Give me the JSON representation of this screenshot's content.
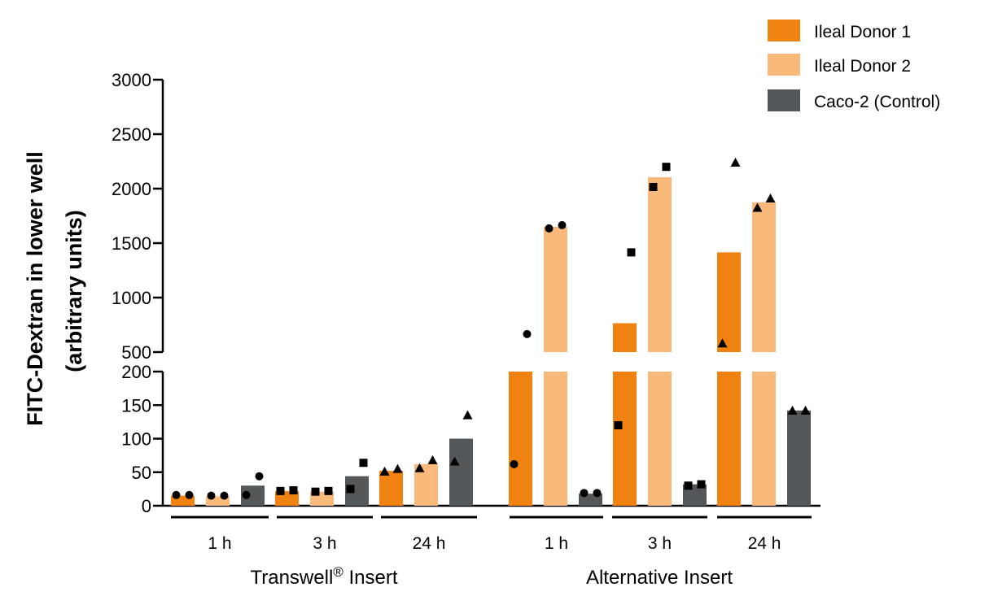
{
  "chart_data": {
    "type": "bar",
    "ylabel": "FITC-Dextran in lower well",
    "ylabel_line2": "(arbitrary units)",
    "y_axis_broken": true,
    "y_break_between": [
      200,
      500
    ],
    "ylim_lower": [
      0,
      200
    ],
    "ylim_upper": [
      500,
      3000
    ],
    "yticks_lower": [
      "0",
      "50",
      "100",
      "150",
      "200"
    ],
    "yticks_upper": [
      "500",
      "1000",
      "1500",
      "2000",
      "2500",
      "3000"
    ],
    "legend_position": "top-right",
    "groups": [
      {
        "label": "Transwell",
        "label_sup": "®",
        "label_suffix": " Insert",
        "time_labels": [
          "1 h",
          "3 h",
          "24 h"
        ]
      },
      {
        "label": "Alternative Insert",
        "time_labels": [
          "1 h",
          "3 h",
          "24 h"
        ]
      }
    ],
    "series": [
      {
        "name": "Ileal Donor 1",
        "color": "#ef8210",
        "values": [
          15,
          22,
          52,
          365,
          765,
          1415
        ]
      },
      {
        "name": "Ileal Donor 2",
        "color": "#f9b97a",
        "values": [
          14,
          21,
          62,
          1650,
          2105,
          1875
        ]
      },
      {
        "name": "Caco-2 (Control)",
        "color": "#53575a",
        "values": [
          30,
          44,
          100,
          18,
          32,
          142
        ]
      }
    ],
    "points": [
      [
        [
          16,
          16
        ],
        [
          22,
          23
        ],
        [
          51,
          55
        ],
        [
          62,
          665
        ],
        [
          120,
          1415
        ],
        [
          580,
          2240
        ]
      ],
      [
        [
          15,
          15
        ],
        [
          21,
          22
        ],
        [
          56,
          68
        ],
        [
          1635,
          1665
        ],
        [
          2015,
          2200
        ],
        [
          1825,
          1910
        ]
      ],
      [
        [
          16,
          44
        ],
        [
          25,
          64
        ],
        [
          66,
          135
        ],
        [
          19,
          19
        ],
        [
          30,
          32
        ],
        [
          142,
          142
        ]
      ]
    ],
    "marker_by_time": [
      "circle",
      "square",
      "triangle"
    ]
  }
}
